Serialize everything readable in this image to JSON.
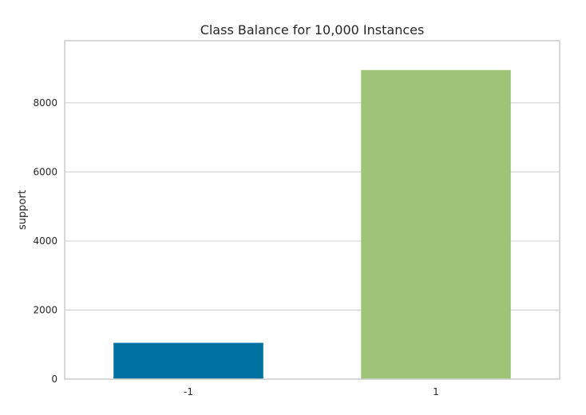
{
  "colors": {
    "bar_neg": "#0072a2",
    "bar_pos": "#9fc377",
    "grid": "#cccccc",
    "text": "#262626"
  },
  "chart_data": {
    "type": "bar",
    "title": "Class Balance for 10,000 Instances",
    "xlabel": "",
    "ylabel": "support",
    "categories": [
      "-1",
      "1"
    ],
    "values": [
      1050,
      8950
    ],
    "ylim": [
      0,
      9800
    ],
    "yticks": [
      0,
      2000,
      4000,
      6000,
      8000
    ],
    "ytick_labels": [
      "0",
      "2000",
      "4000",
      "6000",
      "8000"
    ],
    "grid": true,
    "legend": "none"
  }
}
